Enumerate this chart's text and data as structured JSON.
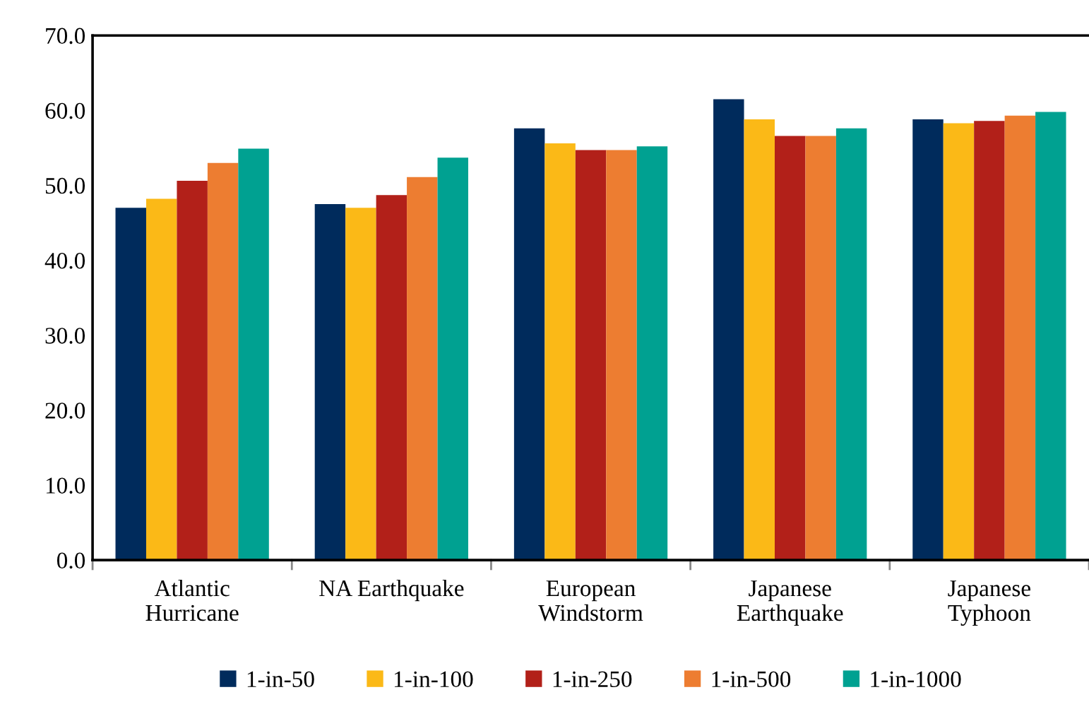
{
  "chart_data": {
    "type": "bar",
    "categories": [
      "Atlantic\nHurricane",
      "NA Earthquake",
      "European\nWindstorm",
      "Japanese\nEarthquake",
      "Japanese\nTyphoon"
    ],
    "series": [
      {
        "name": "1-in-50",
        "color": "#002b5c",
        "values": [
          47.0,
          47.5,
          57.6,
          61.5,
          58.8
        ]
      },
      {
        "name": "1-in-100",
        "color": "#fbb917",
        "values": [
          48.2,
          47.0,
          55.6,
          58.8,
          58.3
        ]
      },
      {
        "name": "1-in-250",
        "color": "#b22019",
        "values": [
          50.6,
          48.7,
          54.7,
          56.6,
          58.6
        ]
      },
      {
        "name": "1-in-500",
        "color": "#ed7d31",
        "values": [
          53.0,
          51.1,
          54.7,
          56.6,
          59.3
        ]
      },
      {
        "name": "1-in-1000",
        "color": "#00a191",
        "values": [
          54.9,
          53.7,
          55.2,
          57.6,
          59.8
        ]
      }
    ],
    "ylim": [
      0,
      70
    ],
    "yticks": [
      {
        "value": 0,
        "label": "0.0"
      },
      {
        "value": 10,
        "label": "10.0"
      },
      {
        "value": 20,
        "label": "20.0"
      },
      {
        "value": 30,
        "label": "30.0"
      },
      {
        "value": 40,
        "label": "40.0"
      },
      {
        "value": 50,
        "label": "50.0"
      },
      {
        "value": 60,
        "label": "60.0"
      },
      {
        "value": 70,
        "label": "70.0"
      }
    ],
    "grid": false,
    "legend": "bottom"
  }
}
